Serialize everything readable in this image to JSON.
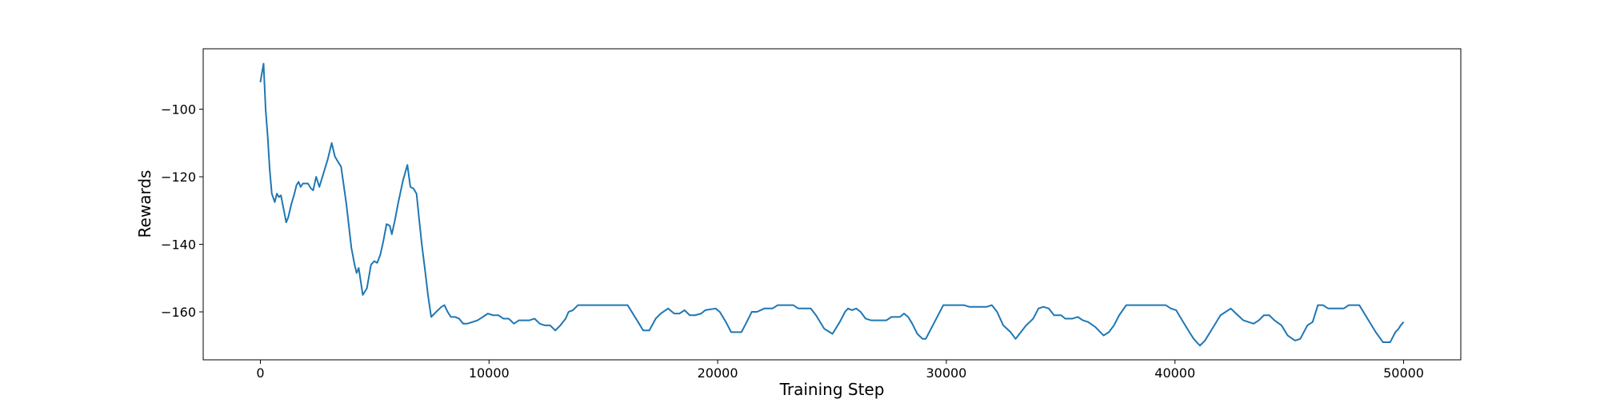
{
  "chart_data": {
    "type": "line",
    "x_label": "Training Step",
    "y_label": "Rewards",
    "x": [
      0,
      140,
      230,
      320,
      410,
      500,
      630,
      720,
      810,
      900,
      1000,
      1130,
      1220,
      1360,
      1490,
      1580,
      1670,
      1760,
      1860,
      2080,
      2220,
      2310,
      2440,
      2580,
      2760,
      2940,
      3120,
      3260,
      3390,
      3530,
      3760,
      3980,
      4120,
      4210,
      4300,
      4480,
      4660,
      4750,
      4840,
      4980,
      5110,
      5250,
      5380,
      5520,
      5660,
      5750,
      5880,
      6020,
      6240,
      6430,
      6560,
      6700,
      6830,
      6920,
      7060,
      7190,
      7330,
      7470,
      7690,
      7920,
      8050,
      8190,
      8330,
      8510,
      8690,
      8870,
      9050,
      9280,
      9500,
      9730,
      9950,
      10180,
      10410,
      10630,
      10860,
      11090,
      11310,
      11540,
      11770,
      11990,
      12220,
      12440,
      12670,
      12900,
      13120,
      13350,
      13480,
      13670,
      13890,
      16060,
      16520,
      16740,
      17010,
      17290,
      17510,
      17830,
      18100,
      18330,
      18550,
      18780,
      19010,
      19280,
      19460,
      19910,
      20090,
      20360,
      20590,
      21040,
      21270,
      21490,
      21720,
      22040,
      22400,
      22630,
      23300,
      23530,
      24070,
      24300,
      24660,
      25020,
      25340,
      25570,
      25700,
      25880,
      26060,
      26250,
      26470,
      26700,
      27380,
      27600,
      27970,
      28150,
      28330,
      28510,
      28730,
      28960,
      29100,
      29870,
      30770,
      31000,
      31770,
      31990,
      32220,
      32490,
      32810,
      33030,
      33260,
      33490,
      33800,
      34030,
      34250,
      34480,
      34710,
      35020,
      35200,
      35520,
      35750,
      35970,
      36200,
      36520,
      36880,
      37110,
      37330,
      37560,
      37870,
      39590,
      39820,
      40050,
      40270,
      40630,
      40820,
      41090,
      41310,
      41630,
      41990,
      42220,
      42440,
      42670,
      42990,
      43210,
      43440,
      43670,
      43890,
      44120,
      44350,
      44660,
      44930,
      45250,
      45480,
      45790,
      46020,
      46250,
      46470,
      46700,
      47380,
      47600,
      48060,
      48420,
      48780,
      49100,
      49410,
      49640,
      49780,
      49870,
      50000
    ],
    "series": [
      {
        "color": "#1f77b4",
        "values": [
          -92,
          -86.5,
          -100,
          -108,
          -118,
          -125,
          -127.5,
          -125,
          -126,
          -125.5,
          -129,
          -133.5,
          -132,
          -128,
          -125,
          -122.5,
          -121.5,
          -123,
          -122,
          -122,
          -123.5,
          -124,
          -120,
          -123,
          -119,
          -115,
          -110,
          -114,
          -115.5,
          -117,
          -128,
          -141,
          -146,
          -148.5,
          -147,
          -155,
          -153,
          -149.5,
          -146,
          -145,
          -145.5,
          -143,
          -139,
          -134,
          -134.5,
          -137,
          -133,
          -128,
          -121,
          -116.5,
          -123,
          -123.5,
          -125,
          -131,
          -140,
          -147,
          -155,
          -161.5,
          -160,
          -158.5,
          -158,
          -160,
          -161.5,
          -161.5,
          -162,
          -163.5,
          -163.5,
          -163,
          -162.5,
          -161.5,
          -160.5,
          -161,
          -161,
          -162,
          -162,
          -163.5,
          -162.5,
          -162.5,
          -162.5,
          -162,
          -163.5,
          -164,
          -164,
          -165.5,
          -164,
          -162,
          -160,
          -159.5,
          -158,
          -158,
          -163,
          -165.5,
          -165.5,
          -162,
          -160.5,
          -159,
          -160.5,
          -160.5,
          -159.5,
          -161,
          -161,
          -160.5,
          -159.5,
          -159,
          -160,
          -163,
          -166,
          -166,
          -163,
          -160,
          -160,
          -159,
          -159,
          -158,
          -158,
          -159,
          -159,
          -161,
          -165,
          -166.5,
          -163,
          -160,
          -159,
          -159.5,
          -159,
          -160,
          -162,
          -162.5,
          -162.5,
          -161.5,
          -161.5,
          -160.5,
          -161.5,
          -163.5,
          -166.5,
          -168,
          -168,
          -158,
          -158,
          -158.5,
          -158.5,
          -158,
          -160,
          -164,
          -166,
          -168,
          -166,
          -164,
          -162,
          -159,
          -158.5,
          -159,
          -161,
          -161,
          -162,
          -162,
          -161.5,
          -162.5,
          -163,
          -164.5,
          -167,
          -166,
          -164,
          -161,
          -158,
          -158,
          -159,
          -159.5,
          -162,
          -166,
          -168,
          -170,
          -168.5,
          -165,
          -161,
          -160,
          -159,
          -160.5,
          -162.5,
          -163,
          -163.5,
          -162.5,
          -161,
          -161,
          -162.5,
          -164,
          -167,
          -168.5,
          -168,
          -164,
          -163,
          -158,
          -158,
          -159,
          -159,
          -158,
          -158,
          -162,
          -166,
          -169,
          -169,
          -166,
          -165,
          -164,
          -163
        ]
      }
    ],
    "xlim": [
      -2500,
      52500
    ],
    "xticks": [
      0,
      10000,
      20000,
      30000,
      40000,
      50000
    ],
    "ylim": [
      -174.2,
      -82.1
    ],
    "yticks": [
      {
        "value": -160,
        "label": "−160"
      },
      {
        "value": -140,
        "label": "−140"
      },
      {
        "value": -120,
        "label": "−120"
      },
      {
        "value": -100,
        "label": "−100"
      }
    ]
  }
}
